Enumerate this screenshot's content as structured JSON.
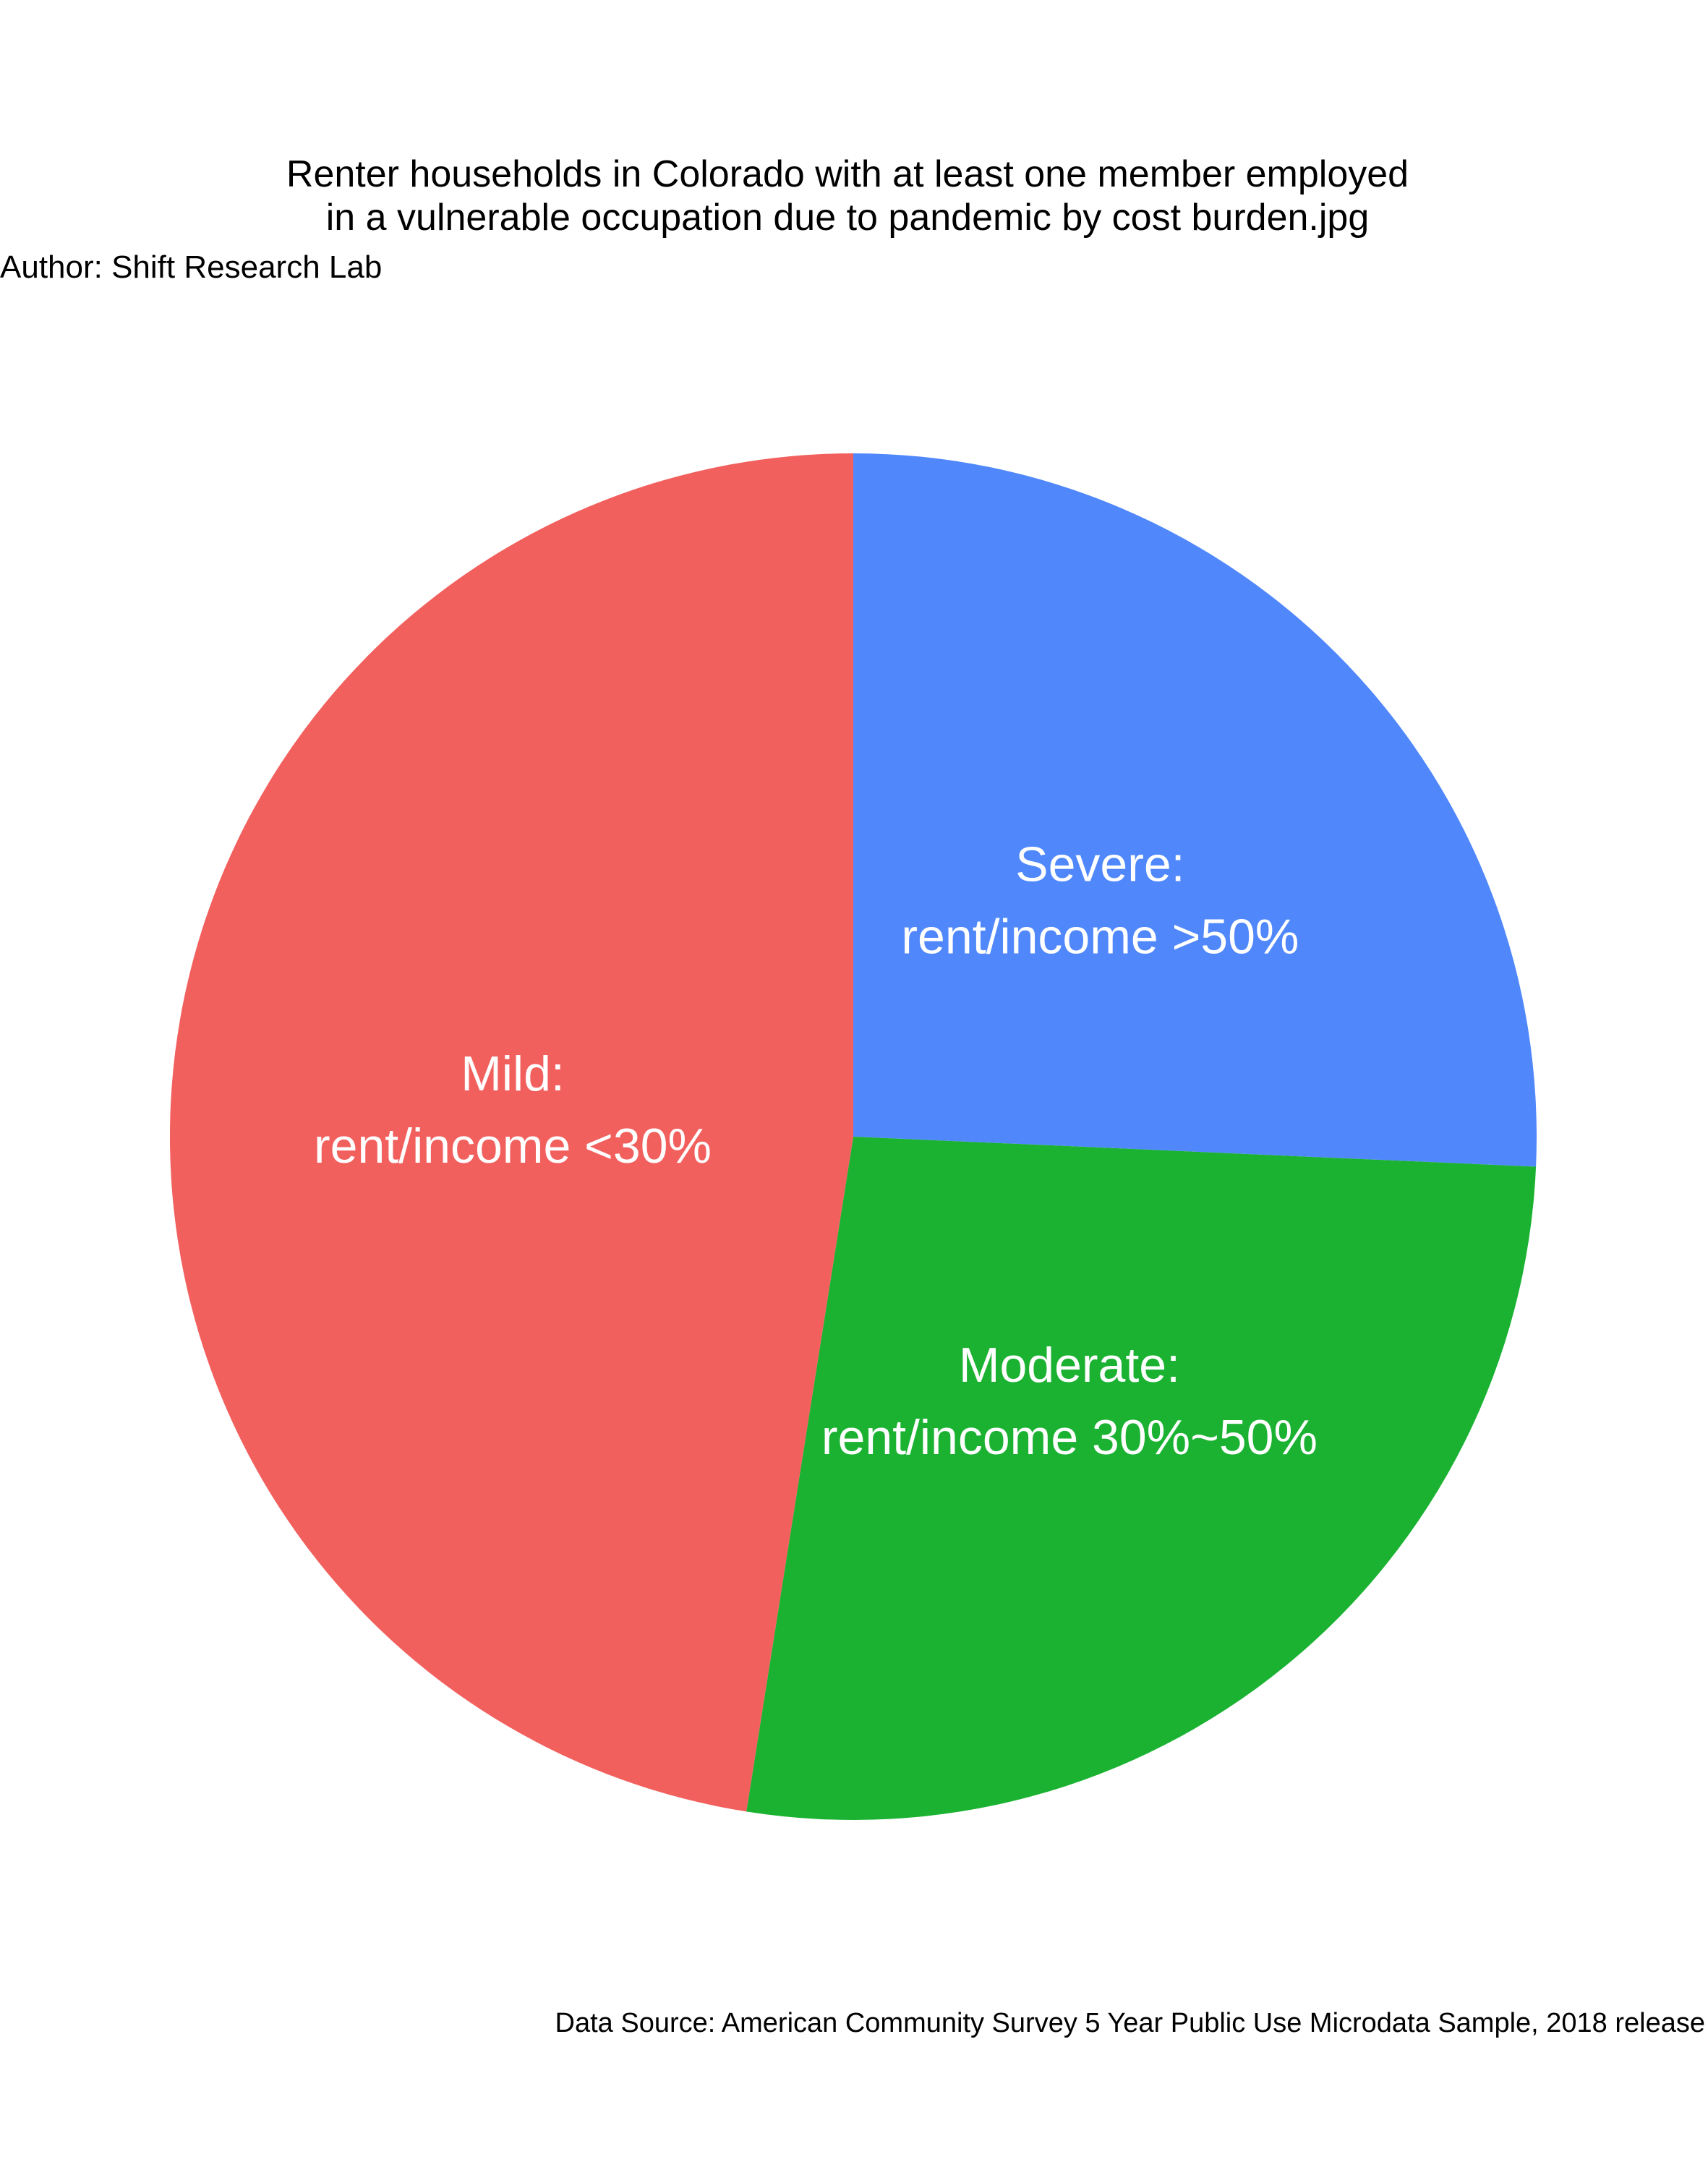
{
  "chart_data": {
    "type": "pie",
    "title_lines": [
      "Renter households in Colorado with at least one member employed",
      "in a vulnerable occupation due to pandemic by cost burden.jpg"
    ],
    "author": "Author: Shift Research Lab",
    "source": "Data Source: American Community Survey 5 Year Public Use Microdata Sample, 2018 release",
    "slices": [
      {
        "key": "severe",
        "label_lines": [
          "Severe:",
          "rent/income >50%"
        ],
        "value": 25.7,
        "color": "#5088FC"
      },
      {
        "key": "moderate",
        "label_lines": [
          "Moderate:",
          "rent/income 30%~50%"
        ],
        "value": 26.8,
        "color": "#1BB232"
      },
      {
        "key": "mild",
        "label_lines": [
          "Mild:",
          "rent/income <30%"
        ],
        "value": 47.5,
        "color": "#F2605E"
      }
    ]
  }
}
